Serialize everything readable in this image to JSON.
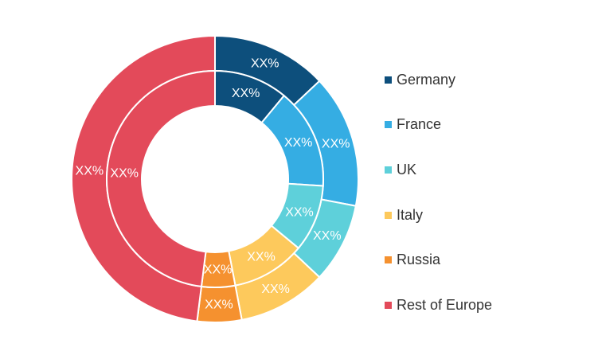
{
  "chart_data": {
    "type": "donut",
    "categories": [
      "Germany",
      "France",
      "UK",
      "Italy",
      "Russia",
      "Rest of Europe"
    ],
    "colors": [
      "#0d4f7c",
      "#35ade3",
      "#5ed0da",
      "#fdc95c",
      "#f5912f",
      "#e34a5a"
    ],
    "series": [
      {
        "ring": "outer",
        "values": [
          13,
          15,
          9,
          10,
          5,
          48
        ],
        "labels": [
          "XX%",
          "XX%",
          "XX%",
          "XX%",
          "XX%",
          "XX%"
        ]
      },
      {
        "ring": "inner",
        "values": [
          11,
          15,
          10,
          11,
          5,
          48
        ],
        "labels": [
          "XX%",
          "XX%",
          "XX%",
          "XX%",
          "XX%",
          "XX%"
        ]
      }
    ],
    "legend_position": "right"
  }
}
